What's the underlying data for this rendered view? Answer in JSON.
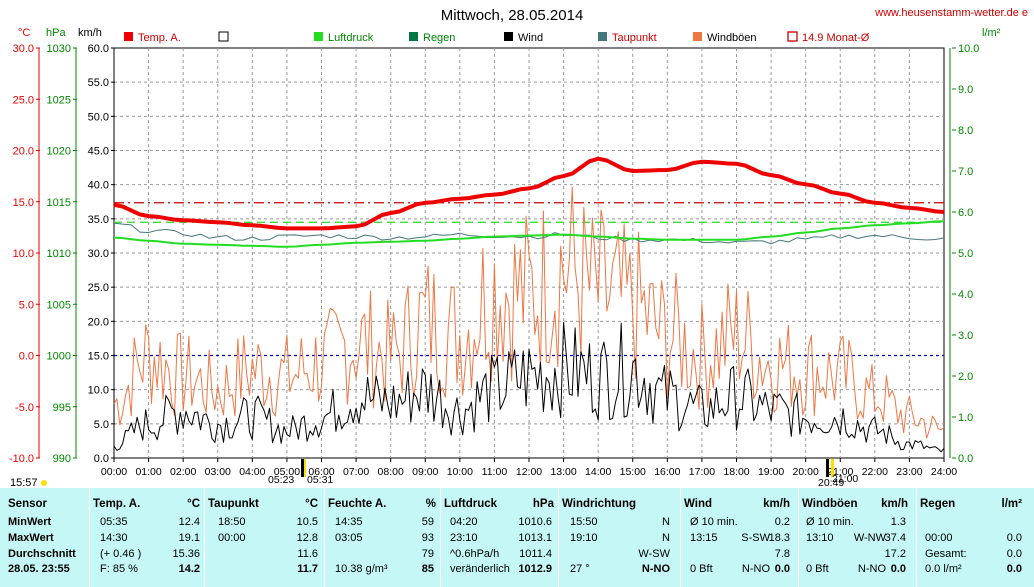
{
  "title": "Mittwoch, 28.05.2014",
  "site": "www.heusenstamm-wetter.de e",
  "time_label": "15:57",
  "unit_headers": {
    "temp": "°C",
    "press": "hPa",
    "wind": "km/h",
    "rain": "l/m²"
  },
  "legend": [
    {
      "label": "Temp. A.",
      "color": "#ee0000",
      "style": "filled"
    },
    {
      "label": "",
      "color": "#ffffff",
      "style": "empty"
    },
    {
      "label": "Luftdruck",
      "color": "#22dd22",
      "style": "filled"
    },
    {
      "label": "Regen",
      "color": "#007744",
      "style": "filled"
    },
    {
      "label": "Wind",
      "color": "#000000",
      "style": "filled"
    },
    {
      "label": "Taupunkt",
      "color": "#447777",
      "style": "filled"
    },
    {
      "label": "Windböen",
      "color": "#ee7744",
      "style": "filled"
    },
    {
      "label": "14.9 Monat-Ø",
      "color": "#cc0000",
      "style": "outline"
    }
  ],
  "sun_labels": {
    "sunrise": "05:23",
    "sunrise2": "05:31",
    "sunset": "21:00",
    "sunset2": "20:49"
  },
  "chart_data": {
    "type": "line",
    "title": "Mittwoch, 28.05.2014",
    "x_ticks": [
      "00:00",
      "01:00",
      "02:00",
      "03:00",
      "04:00",
      "05:00",
      "06:00",
      "07:00",
      "08:00",
      "09:00",
      "10:00",
      "11:00",
      "12:00",
      "13:00",
      "14:00",
      "15:00",
      "16:00",
      "17:00",
      "18:00",
      "19:00",
      "20:00",
      "21:00",
      "22:00",
      "23:00",
      "24:00"
    ],
    "axes": {
      "temp": {
        "label": "°C",
        "ticks": [
          "30.0",
          "25.0",
          "20.0",
          "15.0",
          "10.0",
          "5.0",
          "0.0",
          "-5.0",
          "-10.0"
        ],
        "range": [
          -10,
          30
        ]
      },
      "pressure": {
        "label": "hPa",
        "ticks": [
          "1030",
          "1025",
          "1020",
          "1015",
          "1010",
          "1005",
          "1000",
          "995",
          "990"
        ],
        "range": [
          990,
          1030
        ]
      },
      "wind": {
        "label": "km/h",
        "ticks": [
          "60.0",
          "55.0",
          "50.0",
          "45.0",
          "40.0",
          "35.0",
          "30.0",
          "25.0",
          "20.0",
          "15.0",
          "10.0",
          "5.0",
          "0.0"
        ],
        "range": [
          0,
          60
        ]
      },
      "rain": {
        "label": "l/m²",
        "ticks": [
          "10.0",
          "9.0",
          "8.0",
          "7.0",
          "6.0",
          "5.0",
          "4.0",
          "3.0",
          "2.0",
          "1.0",
          "0.0"
        ],
        "range": [
          0,
          10
        ]
      }
    },
    "reference_lines": {
      "temp_month_avg": 14.9,
      "temp_zero": 0.0,
      "pressure_ref": 1013.0
    },
    "hours": [
      0,
      1,
      2,
      3,
      4,
      5,
      6,
      7,
      8,
      9,
      10,
      11,
      12,
      13,
      14,
      15,
      16,
      17,
      18,
      19,
      20,
      21,
      22,
      23,
      24
    ],
    "series": [
      {
        "name": "Temp. A.",
        "axis": "temp",
        "color": "#ee0000",
        "values": [
          14.7,
          13.6,
          13.2,
          13.0,
          12.7,
          12.4,
          12.4,
          12.6,
          13.9,
          14.9,
          15.3,
          15.7,
          16.3,
          17.5,
          19.2,
          18.0,
          18.1,
          18.9,
          18.7,
          17.6,
          16.7,
          15.8,
          14.9,
          14.4,
          14.0
        ]
      },
      {
        "name": "Luftdruck",
        "axis": "pressure",
        "color": "#22dd22",
        "values": [
          1011.5,
          1011.2,
          1010.9,
          1010.8,
          1010.7,
          1010.6,
          1010.8,
          1011.0,
          1011.1,
          1011.2,
          1011.4,
          1011.6,
          1011.7,
          1011.8,
          1011.6,
          1011.4,
          1011.3,
          1011.3,
          1011.3,
          1011.6,
          1012.0,
          1012.4,
          1012.7,
          1012.9,
          1013.1
        ]
      },
      {
        "name": "Taupunkt",
        "axis": "temp",
        "color": "#447777",
        "values": [
          12.8,
          12.2,
          11.9,
          11.5,
          11.4,
          11.6,
          11.7,
          11.6,
          11.5,
          11.6,
          11.8,
          11.7,
          11.6,
          11.8,
          11.5,
          11.3,
          11.3,
          11.2,
          11.0,
          11.1,
          11.3,
          11.6,
          11.7,
          11.5,
          11.4
        ]
      },
      {
        "name": "Wind",
        "axis": "wind",
        "color": "#000000",
        "values": [
          2,
          5,
          7,
          5,
          6,
          4,
          6,
          9,
          8,
          10,
          7,
          10,
          12,
          13,
          12,
          13,
          9,
          7,
          9,
          7,
          6,
          6,
          4,
          2,
          1
        ]
      },
      {
        "name": "Windböen",
        "axis": "wind",
        "color": "#ee7744",
        "values": [
          8,
          15,
          12,
          10,
          13,
          12,
          14,
          17,
          15,
          20,
          18,
          25,
          24,
          28,
          24,
          22,
          18,
          15,
          18,
          14,
          13,
          12,
          9,
          6,
          4
        ]
      }
    ]
  },
  "stats": {
    "sensor": {
      "header": "Sensor",
      "rows": [
        "MinWert",
        "MaxWert",
        "Durchschnitt",
        "28.05. 23:55"
      ]
    },
    "temp": {
      "header": "Temp. A.",
      "unit": "°C",
      "rows": [
        [
          "05:35",
          "12.4"
        ],
        [
          "14:30",
          "19.1"
        ],
        [
          "(+ 0.46 )",
          "15.36"
        ],
        [
          "F: 85 %",
          "14.2"
        ]
      ]
    },
    "taupunkt": {
      "header": "Taupunkt",
      "unit": "°C",
      "rows": [
        [
          "18:50",
          "10.5"
        ],
        [
          "00:00",
          "12.8"
        ],
        [
          "",
          "11.6"
        ],
        [
          "",
          "11.7"
        ]
      ]
    },
    "feuchte": {
      "header": "Feuchte A.",
      "unit": "%",
      "rows": [
        [
          "14:35",
          "59"
        ],
        [
          "03:05",
          "93"
        ],
        [
          "",
          "79"
        ],
        [
          "10.38 g/m³",
          "85"
        ]
      ]
    },
    "luftdruck": {
      "header": "Luftdruck",
      "unit": "hPa",
      "rows": [
        [
          "04:20",
          "1010.6"
        ],
        [
          "23:10",
          "1013.1"
        ],
        [
          "^0.6hPa/h",
          "1011.4"
        ],
        [
          "veränderlich",
          "1012.9"
        ]
      ]
    },
    "windrichtung": {
      "header": "Windrichtung",
      "unit": "",
      "rows": [
        [
          "15:50",
          "N"
        ],
        [
          "19:10",
          "N"
        ],
        [
          "",
          "W-SW"
        ],
        [
          "27 °",
          "N-NO"
        ]
      ]
    },
    "wind": {
      "header": "Wind",
      "unit": "km/h",
      "rows": [
        [
          "Ø 10 min.",
          "",
          "0.2"
        ],
        [
          "13:15",
          "S-SW",
          "18.3"
        ],
        [
          "",
          "",
          "7.8"
        ],
        [
          "0 Bft",
          "N-NO",
          "0.0"
        ]
      ]
    },
    "windboeen": {
      "header": "Windböen",
      "unit": "km/h",
      "rows": [
        [
          "Ø 10 min.",
          "",
          "1.3"
        ],
        [
          "13:10",
          "W-NW",
          "37.4"
        ],
        [
          "",
          "",
          "17.2"
        ],
        [
          "0 Bft",
          "N-NO",
          "0.0"
        ]
      ]
    },
    "regen": {
      "header": "Regen",
      "unit": "l/m²",
      "rows": [
        [
          "",
          "",
          ""
        ],
        [
          "00:00",
          "",
          "0.0"
        ],
        [
          "Gesamt:",
          "",
          "0.0"
        ],
        [
          "0.0 l/m²",
          "",
          "0.0"
        ]
      ]
    }
  }
}
